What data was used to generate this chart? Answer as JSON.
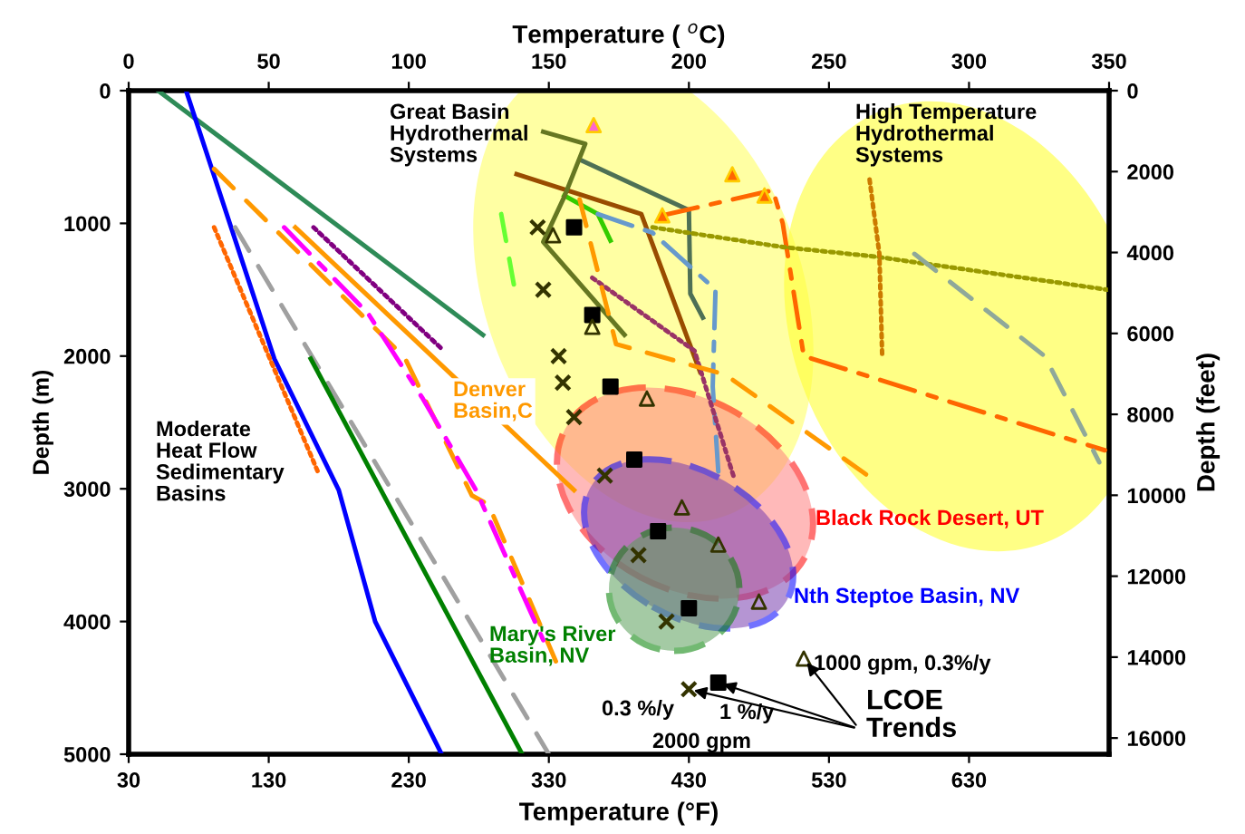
{
  "chart_data": {
    "type": "line",
    "xlabel": "Temperature (°F)",
    "x2label": "Temperature ( $^{o}$C)",
    "ylabel": "Depth (m)",
    "y2label": "Depth (feet)",
    "xlim": [
      30,
      730
    ],
    "xticks": [
      30,
      130,
      230,
      330,
      430,
      530,
      630
    ],
    "x2lim": [
      0,
      350
    ],
    "x2ticks": [
      0,
      50,
      100,
      150,
      200,
      250,
      300,
      350
    ],
    "ylim": [
      5000,
      0
    ],
    "yticks": [
      0,
      1000,
      2000,
      3000,
      4000,
      5000
    ],
    "y2lim": [
      16400,
      0
    ],
    "y2ticks": [
      0,
      2000,
      4000,
      6000,
      8000,
      10000,
      12000,
      14000,
      16000
    ],
    "grid": false,
    "series": [
      {
        "color": "#2e8b57",
        "line_style": "solid",
        "x": [
          51,
          283
        ],
        "values": [
          0,
          1840
        ]
      },
      {
        "color": "#0000ff",
        "line_style": "solid",
        "x": [
          71,
          134,
          180,
          206,
          253
        ],
        "values": [
          0,
          2020,
          3010,
          4000,
          4990
        ]
      },
      {
        "color": "#ff6600",
        "line_style": "dotted",
        "x": [
          91,
          165
        ],
        "values": [
          1030,
          2870
        ]
      },
      {
        "color": "#ff9900",
        "line_style": "solid",
        "x": [
          149,
          348
        ],
        "values": [
          1030,
          3010
        ]
      },
      {
        "color": "#ff9900",
        "line_style": "dashed",
        "x": [
          91,
          227,
          275,
          287,
          335
        ],
        "values": [
          590,
          2010,
          3050,
          3120,
          4300
        ]
      },
      {
        "color": "#ff00ff",
        "line_style": "dashdot",
        "x": [
          141,
          201,
          240,
          278,
          326
        ],
        "values": [
          1030,
          1680,
          2320,
          3010,
          4140
        ]
      },
      {
        "color": "#800080",
        "line_style": "dotted",
        "x": [
          162,
          253
        ],
        "values": [
          1030,
          1940
        ]
      },
      {
        "color": "#a0a0a0",
        "line_style": "dashed",
        "x": [
          106,
          330
        ],
        "values": [
          1030,
          5000
        ]
      },
      {
        "color": "#008000",
        "line_style": "solid",
        "x": [
          160,
          311
        ],
        "values": [
          2020,
          5000
        ]
      },
      {
        "color": "#4e7055",
        "line_style": "solid",
        "x": [
          352,
          430,
          431,
          440
        ],
        "values": [
          520,
          900,
          1530,
          1710
        ]
      },
      {
        "color": "#994c00",
        "line_style": "solid",
        "x": [
          307,
          396,
          438
        ],
        "values": [
          630,
          930,
          2120
        ]
      },
      {
        "color": "#ff6600",
        "line_style": "dashdot",
        "x": [
          411,
          490,
          497,
          512,
          727
        ],
        "values": [
          940,
          750,
          1000,
          2000,
          2710
        ]
      },
      {
        "color": "#999900",
        "line_style": "dotted",
        "x": [
          404,
          498,
          563,
          729
        ],
        "values": [
          1030,
          1180,
          1250,
          1500
        ]
      },
      {
        "color": "#cc7a00",
        "line_style": "dotted",
        "x": [
          559,
          566,
          568
        ],
        "values": [
          670,
          1230,
          2000
        ]
      },
      {
        "color": "#8fa89a",
        "line_style": "dashed",
        "x": [
          591,
          684,
          723
        ],
        "values": [
          1230,
          2000,
          2800
        ]
      },
      {
        "color": "#66ff33",
        "line_style": "dashed",
        "x": [
          296,
          305
        ],
        "values": [
          930,
          1460
        ]
      },
      {
        "color": "#33cc00",
        "line_style": "solid",
        "x": [
          341,
          365,
          374
        ],
        "values": [
          790,
          930,
          1130
        ]
      },
      {
        "color": "#667722",
        "line_style": "solid",
        "x": [
          326,
          356,
          341,
          326,
          384
        ],
        "values": [
          310,
          400,
          800,
          1140,
          1840
        ]
      },
      {
        "color": "#6699cc",
        "line_style": "dashdot",
        "x": [
          365,
          404,
          449,
          447,
          451
        ],
        "values": [
          930,
          1070,
          1500,
          2230,
          2870
        ]
      },
      {
        "color": "#993366",
        "line_style": "dotted",
        "x": [
          361,
          434,
          462
        ],
        "values": [
          1410,
          1960,
          2910
        ]
      },
      {
        "color": "#ff9900",
        "line_style": "dashed",
        "x": [
          352,
          378,
          456,
          559
        ],
        "values": [
          820,
          1910,
          2140,
          2910
        ]
      },
      {
        "type": "scatter",
        "color": "#ff66cc",
        "marker": "triangle",
        "x": [
          362
        ],
        "values": [
          260
        ]
      },
      {
        "type": "scatter",
        "color": "#ff6600",
        "marker": "triangle",
        "x": [
          461,
          484,
          411
        ],
        "values": [
          630,
          790,
          940
        ]
      },
      {
        "type": "scatter",
        "color": "#333300",
        "marker": "cross",
        "x": [
          322,
          326,
          337,
          340,
          348,
          370,
          394,
          414,
          430
        ],
        "values": [
          1030,
          1500,
          2000,
          2200,
          2460,
          2900,
          3500,
          4000,
          4510
        ]
      },
      {
        "type": "scatter",
        "color": "#000000",
        "marker": "square",
        "x": [
          348,
          361,
          374,
          391,
          408,
          430,
          451
        ],
        "values": [
          1030,
          1690,
          2230,
          2780,
          3320,
          3900,
          4460
        ]
      },
      {
        "type": "scatter",
        "color": "#333300",
        "marker": "triangle_open",
        "x": [
          333,
          361,
          400,
          425,
          451,
          480,
          512
        ],
        "values": [
          1090,
          1780,
          2320,
          3140,
          3420,
          3850,
          4280
        ]
      }
    ],
    "annotations": [
      "Great Basin\nHydrothermal\nSystems",
      "High Temperature\nHydrothermal\nSystems",
      "Moderate\nHeat Flow\nSedimentary\nBasins",
      "Denver\nBasin,C",
      "Black Rock Desert, UT",
      "Nth Steptoe Basin, NV",
      "Mary's River\nBasin, NV",
      "1000 gpm, 0.3%/y",
      "0.3 %/y",
      "1 %/y",
      "2000 gpm",
      {
        "text": "LCOE\nTrends",
        "x": 451,
        "y": 4460
      }
    ]
  }
}
